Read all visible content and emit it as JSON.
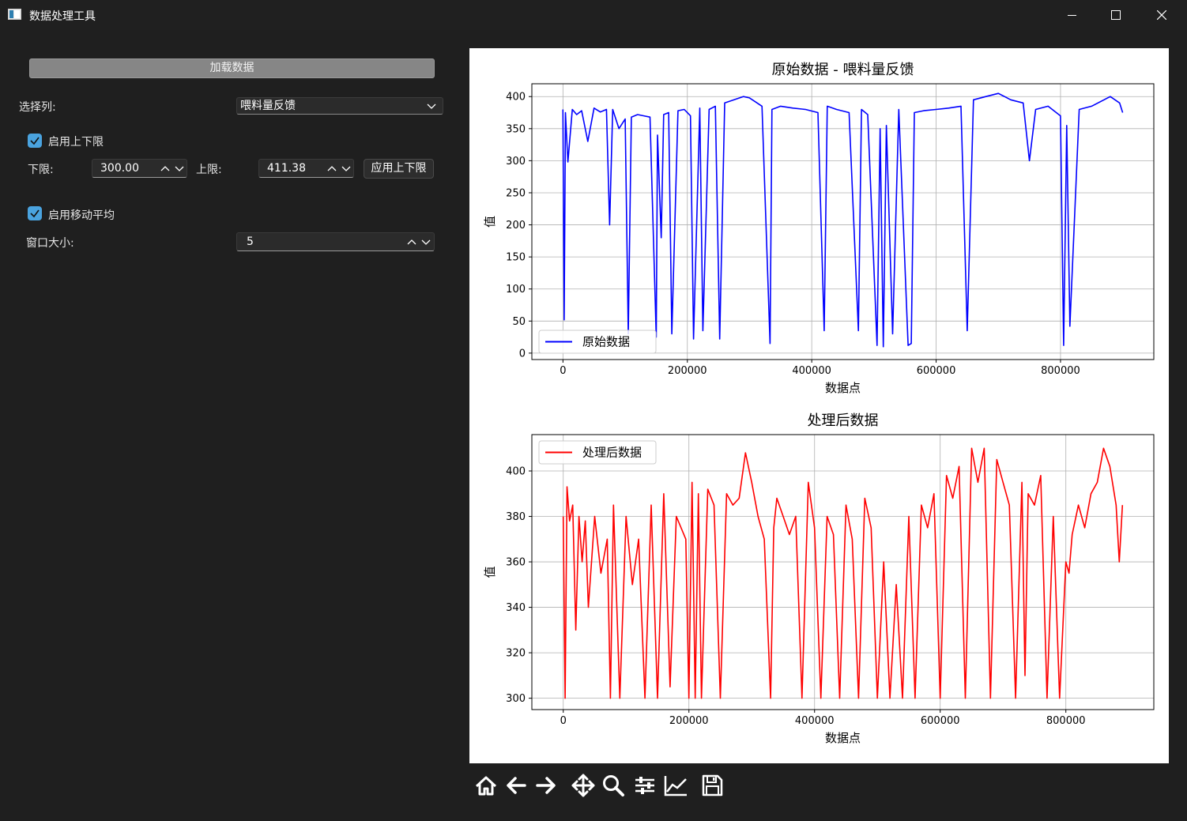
{
  "window": {
    "title": "数据处理工具"
  },
  "controls": {
    "load_button": "加载数据",
    "select_column_label": "选择列:",
    "select_column_value": "喂料量反馈",
    "enable_limits_label": "启用上下限",
    "lower_label": "下限:",
    "lower_value": "300.00",
    "upper_label": "上限:",
    "upper_value": "411.38",
    "apply_button": "应用上下限",
    "enable_ma_label": "启用移动平均",
    "window_size_label": "窗口大小:",
    "window_size_value": "5"
  },
  "toolbar": {
    "icons": [
      "home-icon",
      "back-icon",
      "forward-icon",
      "pan-icon",
      "zoom-icon",
      "configure-subplots-icon",
      "edit-axis-icon",
      "save-icon"
    ]
  },
  "chart_data": [
    {
      "type": "line",
      "title": "原始数据 - 喂料量反馈",
      "xlabel": "数据点",
      "ylabel": "值",
      "xlim": [
        -50000,
        950000
      ],
      "ylim": [
        -10,
        420
      ],
      "xticks": [
        0,
        200000,
        400000,
        600000,
        800000
      ],
      "yticks": [
        0,
        50,
        100,
        150,
        200,
        250,
        300,
        350,
        400
      ],
      "grid": true,
      "legend": "lower-left",
      "series": [
        {
          "name": "原始数据",
          "color": "#0000ff",
          "x": [
            0,
            2000,
            4000,
            8000,
            15000,
            22000,
            30000,
            40000,
            50000,
            60000,
            70000,
            75000,
            80000,
            90000,
            100000,
            105000,
            110000,
            120000,
            130000,
            140000,
            150000,
            152000,
            158000,
            162000,
            170000,
            175000,
            185000,
            195000,
            205000,
            210000,
            220000,
            225000,
            235000,
            245000,
            252000,
            260000,
            275000,
            290000,
            300000,
            320000,
            333000,
            336000,
            350000,
            370000,
            390000,
            410000,
            420000,
            425000,
            440000,
            460000,
            475000,
            480000,
            490000,
            505000,
            510000,
            515000,
            520000,
            530000,
            540000,
            555000,
            560000,
            565000,
            580000,
            600000,
            620000,
            640000,
            650000,
            660000,
            680000,
            700000,
            720000,
            740000,
            750000,
            760000,
            780000,
            800000,
            805000,
            810000,
            815000,
            830000,
            850000,
            870000,
            880000,
            895000,
            900000
          ],
          "values": [
            380,
            52,
            375,
            298,
            380,
            372,
            378,
            330,
            382,
            376,
            380,
            200,
            380,
            350,
            365,
            30,
            368,
            372,
            370,
            368,
            25,
            340,
            180,
            372,
            375,
            30,
            378,
            380,
            370,
            22,
            382,
            35,
            380,
            385,
            22,
            390,
            395,
            400,
            398,
            385,
            15,
            380,
            385,
            382,
            380,
            375,
            35,
            385,
            380,
            375,
            35,
            380,
            372,
            12,
            350,
            10,
            355,
            30,
            380,
            12,
            15,
            375,
            378,
            380,
            382,
            385,
            35,
            395,
            400,
            405,
            395,
            390,
            300,
            380,
            385,
            370,
            12,
            355,
            42,
            380,
            385,
            395,
            400,
            390,
            375
          ]
        }
      ]
    },
    {
      "type": "line",
      "title": "处理后数据",
      "xlabel": "数据点",
      "ylabel": "值",
      "xlim": [
        -50000,
        940000
      ],
      "ylim": [
        295,
        416
      ],
      "xticks": [
        0,
        200000,
        400000,
        600000,
        800000
      ],
      "yticks": [
        300,
        320,
        340,
        360,
        380,
        400
      ],
      "grid": true,
      "legend": "upper-left",
      "series": [
        {
          "name": "处理后数据",
          "color": "#ff0000",
          "x": [
            0,
            3000,
            6000,
            10000,
            15000,
            20000,
            25000,
            30000,
            35000,
            40000,
            50000,
            60000,
            70000,
            75000,
            80000,
            90000,
            100000,
            110000,
            120000,
            130000,
            140000,
            150000,
            160000,
            170000,
            180000,
            195000,
            200000,
            205000,
            210000,
            215000,
            220000,
            230000,
            240000,
            250000,
            260000,
            270000,
            280000,
            290000,
            300000,
            310000,
            320000,
            330000,
            335000,
            340000,
            350000,
            360000,
            370000,
            380000,
            390000,
            400000,
            410000,
            420000,
            430000,
            440000,
            450000,
            460000,
            470000,
            480000,
            490000,
            500000,
            510000,
            520000,
            530000,
            540000,
            550000,
            560000,
            570000,
            580000,
            590000,
            600000,
            610000,
            620000,
            630000,
            640000,
            650000,
            660000,
            670000,
            680000,
            690000,
            700000,
            710000,
            720000,
            730000,
            735000,
            740000,
            750000,
            760000,
            770000,
            780000,
            790000,
            800000,
            805000,
            810000,
            820000,
            830000,
            840000,
            850000,
            860000,
            870000,
            880000,
            885000,
            890000
          ],
          "values": [
            380,
            300,
            393,
            378,
            385,
            330,
            380,
            360,
            378,
            340,
            380,
            355,
            370,
            300,
            385,
            300,
            380,
            350,
            370,
            300,
            385,
            300,
            390,
            305,
            380,
            370,
            300,
            395,
            300,
            390,
            300,
            392,
            385,
            300,
            390,
            385,
            388,
            408,
            395,
            380,
            370,
            300,
            375,
            388,
            380,
            372,
            380,
            300,
            395,
            375,
            300,
            380,
            372,
            300,
            385,
            370,
            300,
            388,
            375,
            300,
            360,
            300,
            350,
            300,
            380,
            300,
            385,
            375,
            390,
            300,
            398,
            388,
            402,
            300,
            410,
            395,
            410,
            300,
            405,
            395,
            385,
            300,
            395,
            310,
            390,
            385,
            398,
            300,
            380,
            300,
            360,
            355,
            372,
            385,
            375,
            390,
            395,
            410,
            402,
            385,
            360,
            385
          ]
        }
      ]
    }
  ]
}
